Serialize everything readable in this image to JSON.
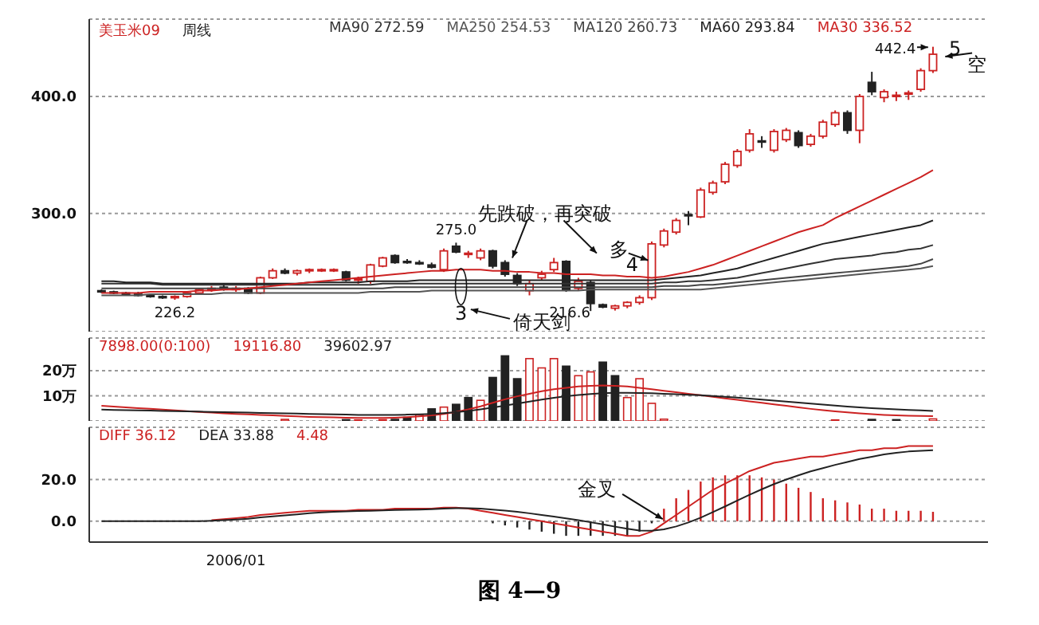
{
  "chart_data": [
    {
      "type": "candlestick",
      "title": "美玉米09",
      "subtitle": "周线",
      "categories": [
        null,
        null,
        null,
        null,
        null,
        null,
        null,
        null,
        null,
        null,
        null,
        null,
        null,
        null,
        null,
        null,
        null,
        null,
        null,
        null,
        null,
        null,
        null,
        null,
        null,
        null,
        null,
        null,
        null,
        null,
        null,
        null,
        null,
        null,
        null,
        null,
        null,
        null,
        null,
        null,
        null,
        null,
        null,
        null,
        null,
        null,
        null,
        null,
        null,
        null,
        null,
        null,
        null,
        null,
        null,
        null,
        null,
        null,
        null,
        null,
        null,
        null,
        null,
        null,
        null,
        null,
        null,
        null,
        null
      ],
      "ohlc": [
        [
          234,
          235,
          232,
          233
        ],
        [
          233,
          234,
          231,
          232
        ],
        [
          232,
          233,
          230,
          231
        ],
        [
          231,
          233,
          229,
          230
        ],
        [
          230,
          231,
          228,
          229
        ],
        [
          229,
          230,
          227,
          228
        ],
        [
          228,
          230,
          226.2,
          229
        ],
        [
          229,
          233,
          228,
          232
        ],
        [
          232,
          236,
          231,
          235
        ],
        [
          235,
          238,
          233,
          236
        ],
        [
          237,
          240,
          234,
          235
        ],
        [
          235,
          238,
          233,
          236
        ],
        [
          236,
          237,
          231,
          232
        ],
        [
          232,
          246,
          231,
          245
        ],
        [
          245,
          253,
          244,
          251
        ],
        [
          251,
          253,
          248,
          249
        ],
        [
          249,
          252,
          247,
          251
        ],
        [
          251,
          253,
          249,
          252
        ],
        [
          252,
          253,
          250,
          252
        ],
        [
          252,
          253,
          250,
          252
        ],
        [
          250,
          251,
          242,
          243
        ],
        [
          243,
          246,
          240,
          244
        ],
        [
          242,
          257,
          240,
          256
        ],
        [
          255,
          263,
          254,
          262
        ],
        [
          264,
          265,
          257,
          258
        ],
        [
          259,
          261,
          257,
          258
        ],
        [
          258,
          260,
          256,
          257
        ],
        [
          256,
          258,
          253,
          254
        ],
        [
          252,
          270,
          250,
          268
        ],
        [
          272,
          275,
          266,
          267
        ],
        [
          265,
          268,
          262,
          266
        ],
        [
          262,
          270,
          260,
          268
        ],
        [
          268,
          269,
          253,
          255
        ],
        [
          258,
          260,
          246,
          248
        ],
        [
          247,
          249,
          238,
          240
        ],
        [
          234,
          243,
          230,
          240
        ],
        [
          245,
          251,
          243,
          248
        ],
        [
          252,
          262,
          250,
          258
        ],
        [
          259,
          260,
          233,
          235
        ],
        [
          236,
          245,
          234,
          242
        ],
        [
          241,
          243,
          216.6,
          223
        ],
        [
          222,
          223,
          219,
          220
        ],
        [
          219,
          222,
          217,
          221
        ],
        [
          221,
          225,
          219,
          224
        ],
        [
          224,
          230,
          222,
          228
        ],
        [
          228,
          276,
          226,
          274
        ],
        [
          273,
          287,
          271,
          285
        ],
        [
          284,
          296,
          282,
          294
        ],
        [
          299,
          302,
          290,
          298
        ],
        [
          297,
          322,
          296,
          320
        ],
        [
          318,
          328,
          316,
          326
        ],
        [
          327,
          344,
          325,
          342
        ],
        [
          341,
          355,
          339,
          353
        ],
        [
          354,
          372,
          352,
          368
        ],
        [
          362,
          366,
          356,
          361
        ],
        [
          354,
          372,
          352,
          370
        ],
        [
          363,
          373,
          361,
          371
        ],
        [
          369,
          371,
          356,
          358
        ],
        [
          359,
          368,
          357,
          366
        ],
        [
          366,
          380,
          364,
          378
        ],
        [
          376,
          388,
          374,
          386
        ],
        [
          386,
          388,
          368,
          371
        ],
        [
          371,
          402,
          360,
          400
        ],
        [
          412,
          421,
          401,
          404
        ],
        [
          399,
          406,
          395,
          404
        ],
        [
          401,
          404,
          396,
          401
        ],
        [
          402,
          405,
          397,
          403
        ],
        [
          406,
          424,
          404,
          422
        ],
        [
          422,
          442.4,
          420,
          436
        ]
      ],
      "colors": [
        "#222222",
        "#222222",
        "#222222",
        "#222222",
        "#222222",
        "#222222",
        "#cc2222",
        "#cc2222",
        "#cc2222",
        "#cc2222",
        "#222222",
        "#cc2222",
        "#222222",
        "#cc2222",
        "#cc2222",
        "#222222",
        "#cc2222",
        "#cc2222",
        "#cc2222",
        "#cc2222",
        "#222222",
        "#cc2222",
        "#cc2222",
        "#cc2222",
        "#222222",
        "#222222",
        "#222222",
        "#222222",
        "#cc2222",
        "#222222",
        "#cc2222",
        "#cc2222",
        "#222222",
        "#222222",
        "#222222",
        "#cc2222",
        "#cc2222",
        "#cc2222",
        "#222222",
        "#cc2222",
        "#222222",
        "#222222",
        "#cc2222",
        "#cc2222",
        "#cc2222",
        "#cc2222",
        "#cc2222",
        "#cc2222",
        "#222222",
        "#cc2222",
        "#cc2222",
        "#cc2222",
        "#cc2222",
        "#cc2222",
        "#222222",
        "#cc2222",
        "#cc2222",
        "#222222",
        "#cc2222",
        "#cc2222",
        "#cc2222",
        "#222222",
        "#cc2222",
        "#222222",
        "#cc2222",
        "#cc2222",
        "#cc2222",
        "#cc2222",
        "#cc2222"
      ],
      "series": [
        {
          "type": "line",
          "color": "#333333",
          "values": [
            240,
            240,
            240,
            240,
            240,
            239,
            239,
            239,
            239,
            239,
            239,
            239,
            239,
            239,
            239,
            239,
            239,
            239,
            239,
            239,
            239,
            239,
            239,
            240,
            240,
            240,
            240,
            240,
            240,
            240,
            240,
            240,
            240,
            240,
            240,
            240,
            240,
            240,
            240,
            240,
            240,
            240,
            240,
            240,
            240,
            240,
            241,
            241,
            242,
            242,
            243,
            244,
            245,
            247,
            249,
            251,
            253,
            255,
            257,
            259,
            261,
            262,
            263,
            264,
            266,
            267,
            269,
            270,
            273
          ]
        },
        {
          "type": "line",
          "color": "#555555",
          "values": [
            230,
            230,
            230,
            230,
            231,
            231,
            231,
            231,
            231,
            231,
            232,
            232,
            232,
            232,
            232,
            232,
            232,
            232,
            232,
            232,
            232,
            232,
            233,
            233,
            233,
            233,
            233,
            234,
            234,
            234,
            234,
            234,
            234,
            234,
            234,
            234,
            234,
            234,
            234,
            234,
            235,
            235,
            235,
            235,
            235,
            235,
            235,
            235,
            235,
            235,
            236,
            237,
            238,
            239,
            240,
            241,
            242,
            243,
            244,
            245,
            246,
            247,
            248,
            249,
            250,
            251,
            252,
            253,
            255
          ]
        },
        {
          "type": "line",
          "color": "#444444",
          "values": [
            236,
            236,
            236,
            236,
            236,
            236,
            236,
            236,
            236,
            236,
            236,
            236,
            236,
            236,
            236,
            236,
            236,
            236,
            236,
            236,
            236,
            236,
            236,
            236,
            237,
            237,
            237,
            237,
            237,
            237,
            237,
            237,
            237,
            237,
            237,
            237,
            237,
            237,
            237,
            237,
            237,
            237,
            237,
            237,
            237,
            237,
            238,
            238,
            238,
            239,
            239,
            240,
            241,
            242,
            243,
            244,
            245,
            246,
            247,
            248,
            249,
            250,
            251,
            252,
            253,
            254,
            255,
            257,
            261
          ]
        },
        {
          "type": "line",
          "color": "#222222",
          "values": [
            242,
            242,
            241,
            241,
            241,
            240,
            240,
            240,
            240,
            240,
            240,
            240,
            240,
            240,
            240,
            240,
            240,
            241,
            241,
            241,
            241,
            241,
            242,
            242,
            242,
            242,
            243,
            243,
            243,
            243,
            243,
            243,
            243,
            243,
            243,
            243,
            243,
            243,
            243,
            243,
            243,
            243,
            243,
            243,
            243,
            243,
            244,
            245,
            246,
            247,
            249,
            251,
            253,
            256,
            259,
            262,
            265,
            268,
            271,
            274,
            276,
            278,
            280,
            282,
            284,
            286,
            288,
            290,
            294
          ]
        },
        {
          "type": "line",
          "color": "#cc2222",
          "values": [
            232,
            232,
            232,
            232,
            233,
            233,
            233,
            233,
            234,
            234,
            235,
            235,
            236,
            237,
            238,
            239,
            240,
            241,
            242,
            243,
            244,
            245,
            246,
            247,
            248,
            249,
            250,
            251,
            251,
            252,
            252,
            252,
            251,
            251,
            250,
            250,
            249,
            249,
            248,
            248,
            248,
            247,
            247,
            246,
            246,
            245,
            246,
            248,
            250,
            253,
            256,
            260,
            264,
            268,
            272,
            276,
            280,
            284,
            287,
            290,
            296,
            301,
            306,
            311,
            316,
            321,
            326,
            331,
            337
          ]
        }
      ],
      "ylim": [
        199,
        466
      ],
      "yticks": [
        {
          "value": 300,
          "label": "300.0"
        },
        {
          "value": 400,
          "label": "400.0"
        }
      ],
      "grid": "y",
      "tick_labels": "y",
      "annotations": [
        "MA90 272.59",
        "MA250 254.53",
        "MA120 260.73",
        "MA60 293.84",
        "MA30 336.52",
        "226.2",
        "275.0",
        "216.6",
        "442.4",
        "先跌破，再突破",
        "3",
        "倚天剑",
        "多",
        "4",
        "5",
        "空"
      ]
    },
    {
      "type": "bar",
      "categories": [
        null,
        null,
        null,
        null,
        null,
        null,
        null,
        null,
        null,
        null,
        null,
        null,
        null,
        null,
        null,
        null,
        null,
        null,
        null,
        null,
        null,
        null,
        null,
        null,
        null,
        null,
        null,
        null,
        null,
        null,
        null,
        null,
        null,
        null,
        null,
        null,
        null,
        null,
        null,
        null,
        null,
        null,
        null,
        null,
        null,
        null,
        null,
        null,
        null,
        null,
        null,
        null,
        null,
        null,
        null,
        null,
        null,
        null,
        null,
        null,
        null,
        null,
        null,
        null,
        null,
        null,
        null,
        null,
        null
      ],
      "series": [
        {
          "color": "#cc2222",
          "values": [
            null,
            null,
            null,
            null,
            null,
            null,
            null,
            null,
            null,
            null,
            null,
            null,
            null,
            null,
            null,
            0.6,
            null,
            null,
            null,
            null,
            0.5,
            0.4,
            null,
            0.5,
            0.6,
            1.4,
            2.5,
            4.8,
            5.5,
            6.6,
            9.3,
            8.2,
            17.3,
            25.9,
            16.8,
            24.8,
            21.1,
            24.8,
            21.8,
            18,
            19.5,
            23.4,
            18,
            9.3,
            16.8,
            7,
            0.7,
            null,
            null,
            null,
            null,
            null,
            null,
            null,
            null,
            null,
            null,
            null,
            null,
            null,
            0.4,
            null,
            null,
            0.6,
            null,
            0.5,
            null,
            null,
            0.8
          ],
          "colors": [
            null,
            null,
            null,
            null,
            null,
            null,
            null,
            null,
            null,
            null,
            null,
            null,
            null,
            null,
            null,
            "#cc2222",
            null,
            null,
            null,
            null,
            "#222222",
            "#cc2222",
            null,
            "#cc2222",
            "#222222",
            "#222222",
            "#cc2222",
            "#222222",
            "#cc2222",
            "#222222",
            "#222222",
            "#cc2222",
            "#222222",
            "#222222",
            "#222222",
            "#cc2222",
            "#cc2222",
            "#cc2222",
            "#222222",
            "#cc2222",
            "#cc2222",
            "#222222",
            "#222222",
            "#cc2222",
            "#cc2222",
            "#cc2222",
            "#cc2222",
            null,
            null,
            null,
            null,
            null,
            null,
            null,
            null,
            null,
            null,
            null,
            null,
            null,
            "#cc2222",
            null,
            null,
            "#222222",
            null,
            "#222222",
            null,
            null,
            "#cc2222"
          ]
        },
        {
          "type": "line",
          "color": "#cc2222",
          "values": [
            6,
            5.7,
            5.4,
            5.1,
            4.8,
            4.5,
            4.2,
            3.9,
            3.6,
            3.3,
            3,
            2.8,
            2.6,
            2.4,
            2.2,
            2,
            1.8,
            1.6,
            1.5,
            1.4,
            1.3,
            1.2,
            1.2,
            1.2,
            1.3,
            1.5,
            1.8,
            2.2,
            2.8,
            3.6,
            4.6,
            5.8,
            7.2,
            8.6,
            9.8,
            10.8,
            11.8,
            12.6,
            13.2,
            13.7,
            14,
            14.1,
            14,
            13.7,
            13.2,
            12.6,
            12,
            11.4,
            10.8,
            10.2,
            9.6,
            9,
            8.4,
            7.8,
            7.2,
            6.6,
            6,
            5.4,
            4.8,
            4.3,
            3.8,
            3.4,
            3,
            2.7,
            2.4,
            2.2,
            2.1,
            2,
            1.9
          ]
        },
        {
          "type": "line",
          "color": "#222222",
          "values": [
            4.5,
            4.4,
            4.3,
            4.2,
            4.1,
            4,
            3.9,
            3.8,
            3.7,
            3.6,
            3.5,
            3.4,
            3.3,
            3.2,
            3.1,
            3,
            2.9,
            2.8,
            2.7,
            2.6,
            2.5,
            2.4,
            2.4,
            2.4,
            2.4,
            2.5,
            2.6,
            2.8,
            3.1,
            3.5,
            4,
            4.6,
            5.3,
            6.1,
            6.9,
            7.7,
            8.5,
            9.2,
            9.8,
            10.3,
            10.7,
            11,
            11.2,
            11.2,
            11.1,
            11,
            10.8,
            10.6,
            10.4,
            10.2,
            9.9,
            9.6,
            9.3,
            8.9,
            8.5,
            8.1,
            7.7,
            7.3,
            6.9,
            6.5,
            6.1,
            5.7,
            5.4,
            5.1,
            4.8,
            4.6,
            4.4,
            4.2,
            4
          ]
        }
      ],
      "ylim": [
        0,
        33
      ],
      "yticks": [
        {
          "value": 10,
          "label": "10万"
        },
        {
          "value": 20,
          "label": "20万"
        }
      ],
      "grid": "y",
      "tick_labels": "y",
      "annotations": [
        "7898.00(0:100)",
        "19116.80",
        "39602.97"
      ]
    },
    {
      "type": "line",
      "categories": [
        null,
        null,
        null,
        null,
        null,
        null,
        null,
        null,
        null,
        null,
        null,
        "2006/01",
        null,
        null,
        null,
        null,
        null,
        null,
        null,
        null,
        null,
        null,
        null,
        null,
        null,
        null,
        null,
        null,
        null,
        null,
        null,
        null,
        null,
        null,
        null,
        null,
        null,
        null,
        null,
        null,
        null,
        null,
        null,
        null,
        null,
        null,
        null,
        null,
        null,
        null,
        null,
        null,
        null,
        null,
        null,
        null,
        null,
        null,
        null,
        null,
        null,
        null,
        null,
        null,
        null,
        null,
        null,
        null,
        null
      ],
      "series": [
        {
          "color": "#cc2222",
          "values": [
            null,
            null,
            null,
            null,
            null,
            null,
            null,
            null,
            null,
            0.5,
            1,
            1.5,
            2,
            3,
            3.5,
            4,
            4.5,
            5,
            5,
            5,
            5,
            5.5,
            5.5,
            5.5,
            6,
            6,
            6,
            6,
            6.5,
            6.5,
            6,
            5,
            4,
            3,
            2,
            1,
            0,
            -1,
            -2,
            -3,
            -4,
            -5,
            -6,
            -7,
            -7,
            -5,
            -1,
            3,
            7,
            11,
            15,
            18,
            21,
            24,
            26,
            28,
            29,
            30,
            31,
            31,
            32,
            33,
            34,
            34,
            35,
            35,
            36,
            36,
            36
          ]
        },
        {
          "color": "#222222",
          "values": [
            0,
            0,
            0,
            0,
            0,
            0,
            0,
            0,
            0,
            0.2,
            0.5,
            0.8,
            1.2,
            1.8,
            2.3,
            2.8,
            3.3,
            3.8,
            4.2,
            4.5,
            4.7,
            4.9,
            5,
            5.2,
            5.4,
            5.5,
            5.6,
            5.8,
            6,
            6.2,
            6.2,
            6,
            5.6,
            5.1,
            4.5,
            3.8,
            3,
            2.2,
            1.4,
            0.5,
            -0.5,
            -1.5,
            -2.6,
            -3.6,
            -4.5,
            -4.6,
            -3.9,
            -2.5,
            -0.6,
            1.7,
            4.4,
            7.1,
            9.9,
            12.7,
            15.3,
            17.8,
            20,
            22,
            23.9,
            25.4,
            27,
            28.4,
            29.8,
            30.9,
            32,
            32.8,
            33.4,
            33.7,
            34
          ]
        },
        {
          "type": "bar",
          "color": "#cc2222",
          "values": [
            null,
            null,
            null,
            null,
            null,
            null,
            null,
            null,
            null,
            null,
            null,
            null,
            null,
            null,
            null,
            null,
            null,
            null,
            null,
            null,
            null,
            null,
            null,
            null,
            null,
            null,
            null,
            null,
            null,
            null,
            null,
            null,
            -1,
            -2,
            -3,
            -4,
            -5,
            -6,
            -7,
            -7,
            -7,
            -7,
            -7,
            -7,
            -5,
            -1,
            6,
            11,
            15,
            19,
            21,
            22,
            22,
            22,
            21,
            20,
            18,
            16,
            14,
            11,
            10,
            9,
            8,
            6,
            6,
            5,
            5,
            5,
            4.5
          ],
          "colors": [
            null,
            null,
            null,
            null,
            null,
            null,
            null,
            null,
            null,
            null,
            null,
            null,
            null,
            null,
            null,
            null,
            null,
            null,
            null,
            null,
            null,
            null,
            null,
            null,
            null,
            null,
            null,
            null,
            null,
            null,
            null,
            null,
            "#222222",
            "#222222",
            "#222222",
            "#222222",
            "#222222",
            "#222222",
            "#222222",
            "#222222",
            "#222222",
            "#222222",
            "#222222",
            "#222222",
            "#222222",
            "#222222",
            "#cc2222",
            "#cc2222",
            "#cc2222",
            "#cc2222",
            "#cc2222",
            "#cc2222",
            "#cc2222",
            "#cc2222",
            "#cc2222",
            "#cc2222",
            "#cc2222",
            "#cc2222",
            "#cc2222",
            "#cc2222",
            "#cc2222",
            "#cc2222",
            "#cc2222",
            "#cc2222",
            "#cc2222",
            "#cc2222",
            "#cc2222",
            "#cc2222",
            "#cc2222"
          ]
        }
      ],
      "ylim": [
        -10,
        45
      ],
      "yticks": [
        {
          "value": 0,
          "label": "0.0"
        },
        {
          "value": 20,
          "label": "20.0"
        }
      ],
      "grid": "y",
      "annotations": [
        "DIFF 36.12",
        "DEA 33.88",
        "4.48",
        "金叉"
      ]
    },
    {
      "type": "other",
      "title": "图 4—9"
    }
  ]
}
